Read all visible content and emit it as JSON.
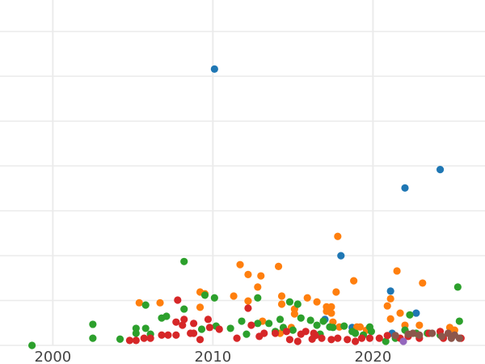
{
  "chart_data": {
    "type": "scatter",
    "title": "",
    "xlabel": "",
    "ylabel": "",
    "xlim": [
      1996.7,
      2027.0
    ],
    "ylim": [
      0,
      7.7
    ],
    "x_ticks": [
      "2000",
      "2010",
      "2020"
    ],
    "x_tick_values": [
      2000,
      2010,
      2020
    ],
    "y_gridlines": [
      0,
      1,
      2,
      3,
      4,
      5,
      6,
      7
    ],
    "grid": true,
    "legend": "none",
    "series": [
      {
        "color": "#1f77b4",
        "points": [
          [
            2010.1,
            6.16
          ],
          [
            2022.0,
            3.51
          ],
          [
            2024.2,
            3.92
          ],
          [
            2018.0,
            2.0
          ],
          [
            2021.1,
            1.21
          ],
          [
            2022.7,
            0.72
          ],
          [
            2017.0,
            0.58
          ],
          [
            2018.7,
            0.4
          ],
          [
            2021.2,
            0.27
          ]
        ]
      },
      {
        "color": "#ff7f0e",
        "points": [
          [
            2017.8,
            2.43
          ],
          [
            2011.7,
            1.8
          ],
          [
            2012.2,
            1.58
          ],
          [
            2013.0,
            1.55
          ],
          [
            2014.1,
            1.76
          ],
          [
            2012.8,
            1.3
          ],
          [
            2012.2,
            0.99
          ],
          [
            2005.4,
            0.95
          ],
          [
            2006.7,
            0.95
          ],
          [
            2009.2,
            1.19
          ],
          [
            2009.5,
            1.15
          ],
          [
            2009.2,
            0.85
          ],
          [
            2011.3,
            1.1
          ],
          [
            2014.3,
            1.1
          ],
          [
            2014.3,
            0.92
          ],
          [
            2015.1,
            0.81
          ],
          [
            2015.1,
            0.7
          ],
          [
            2015.9,
            1.06
          ],
          [
            2016.5,
            0.97
          ],
          [
            2017.1,
            0.86
          ],
          [
            2017.1,
            0.76
          ],
          [
            2017.4,
            0.86
          ],
          [
            2017.4,
            0.72
          ],
          [
            2017.7,
            1.19
          ],
          [
            2018.8,
            1.44
          ],
          [
            2021.5,
            1.66
          ],
          [
            2023.1,
            1.39
          ],
          [
            2021.1,
            1.04
          ],
          [
            2020.9,
            0.88
          ],
          [
            2021.7,
            0.72
          ],
          [
            2021.1,
            0.59
          ],
          [
            2022.0,
            0.45
          ],
          [
            2022.9,
            0.45
          ],
          [
            2024.8,
            0.4
          ],
          [
            2025.1,
            0.34
          ],
          [
            2017.5,
            0.52
          ],
          [
            2017.9,
            0.41
          ],
          [
            2019.0,
            0.41
          ],
          [
            2019.2,
            0.41
          ],
          [
            2019.6,
            0.34
          ],
          [
            2013.1,
            0.54
          ],
          [
            2014.2,
            0.27
          ],
          [
            2014.9,
            0.4
          ]
        ]
      },
      {
        "color": "#2ca02c",
        "points": [
          [
            1998.7,
            0
          ],
          [
            2002.5,
            0.47
          ],
          [
            2002.5,
            0.16
          ],
          [
            2004.2,
            0.14
          ],
          [
            2005.2,
            0.38
          ],
          [
            2005.2,
            0.27
          ],
          [
            2005.8,
            0.9
          ],
          [
            2006.1,
            0.25
          ],
          [
            2005.8,
            0.38
          ],
          [
            2006.8,
            0.61
          ],
          [
            2007.1,
            0.65
          ],
          [
            2008.2,
            1.87
          ],
          [
            2008.2,
            0.81
          ],
          [
            2009.5,
            1.12
          ],
          [
            2010.1,
            1.06
          ],
          [
            2009.3,
            0.36
          ],
          [
            2010.2,
            0.43
          ],
          [
            2011.1,
            0.38
          ],
          [
            2011.8,
            0.54
          ],
          [
            2012.1,
            0.25
          ],
          [
            2012.8,
            1.06
          ],
          [
            2012.8,
            0.49
          ],
          [
            2013.5,
            0.49
          ],
          [
            2013.9,
            0.31
          ],
          [
            2014.2,
            0.58
          ],
          [
            2014.4,
            0.4
          ],
          [
            2014.8,
            0.97
          ],
          [
            2015.3,
            0.92
          ],
          [
            2015.0,
            0.34
          ],
          [
            2015.5,
            0.61
          ],
          [
            2016.1,
            0.56
          ],
          [
            2016.5,
            0.45
          ],
          [
            2016.7,
            0.25
          ],
          [
            2016.9,
            0.54
          ],
          [
            2017.3,
            0.41
          ],
          [
            2017.5,
            0.4
          ],
          [
            2018.2,
            0.43
          ],
          [
            2018.7,
            0.31
          ],
          [
            2018.9,
            0.27
          ],
          [
            2019.4,
            0.23
          ],
          [
            2019.8,
            0.41
          ],
          [
            2019.9,
            0.31
          ],
          [
            2020.8,
            0.09
          ],
          [
            2021.4,
            0.16
          ],
          [
            2022.0,
            0.34
          ],
          [
            2022.3,
            0.68
          ],
          [
            2022.7,
            0.27
          ],
          [
            2023.4,
            0.27
          ],
          [
            2024.2,
            0.23
          ],
          [
            2025.3,
            1.3
          ],
          [
            2025.4,
            0.54
          ]
        ]
      },
      {
        "color": "#d62728",
        "points": [
          [
            2007.8,
            1.01
          ],
          [
            2008.2,
            0.58
          ],
          [
            2008.8,
            0.49
          ],
          [
            2008.8,
            0.27
          ],
          [
            2009.7,
            0.58
          ],
          [
            2009.8,
            0.4
          ],
          [
            2010.4,
            0.36
          ],
          [
            2012.2,
            0.83
          ],
          [
            2012.4,
            0.45
          ],
          [
            2011.5,
            0.16
          ],
          [
            2007.7,
            0.52
          ],
          [
            2008.1,
            0.45
          ],
          [
            2006.8,
            0.23
          ],
          [
            2007.2,
            0.23
          ],
          [
            2007.7,
            0.23
          ],
          [
            2005.7,
            0.16
          ],
          [
            2006.1,
            0.16
          ],
          [
            2004.8,
            0.11
          ],
          [
            2005.2,
            0.11
          ],
          [
            2009.2,
            0.13
          ],
          [
            2008.6,
            0.27
          ],
          [
            2012.9,
            0.2
          ],
          [
            2013.2,
            0.27
          ],
          [
            2013.9,
            0.27
          ],
          [
            2014.8,
            0.13
          ],
          [
            2015.3,
            0.09
          ],
          [
            2015.5,
            0.25
          ],
          [
            2015.8,
            0.31
          ],
          [
            2016.2,
            0.14
          ],
          [
            2016.4,
            0.22
          ],
          [
            2016.8,
            0.16
          ],
          [
            2017.4,
            0.13
          ],
          [
            2017.8,
            0.16
          ],
          [
            2018.4,
            0.13
          ],
          [
            2018.9,
            0.09
          ],
          [
            2019.3,
            0.16
          ],
          [
            2019.8,
            0.16
          ],
          [
            2020.4,
            0.16
          ],
          [
            2020.9,
            0.22
          ],
          [
            2021.7,
            0.16
          ],
          [
            2022.2,
            0.2
          ],
          [
            2022.9,
            0.16
          ],
          [
            2023.5,
            0.27
          ],
          [
            2024.2,
            0.31
          ],
          [
            2024.4,
            0.16
          ],
          [
            2025.5,
            0.16
          ],
          [
            2016.3,
            0.27
          ],
          [
            2014.6,
            0.31
          ]
        ]
      },
      {
        "color": "#9467bd",
        "points": [
          [
            2021.9,
            0.09
          ]
        ]
      },
      {
        "color": "#8c564b",
        "points": [
          [
            2021.4,
            0.22
          ],
          [
            2022.2,
            0.25
          ],
          [
            2022.5,
            0.27
          ],
          [
            2022.9,
            0.23
          ],
          [
            2023.7,
            0.27
          ],
          [
            2024.3,
            0.2
          ],
          [
            2024.7,
            0.27
          ],
          [
            2024.9,
            0.16
          ],
          [
            2025.1,
            0.23
          ],
          [
            2025.4,
            0.16
          ]
        ]
      }
    ]
  }
}
